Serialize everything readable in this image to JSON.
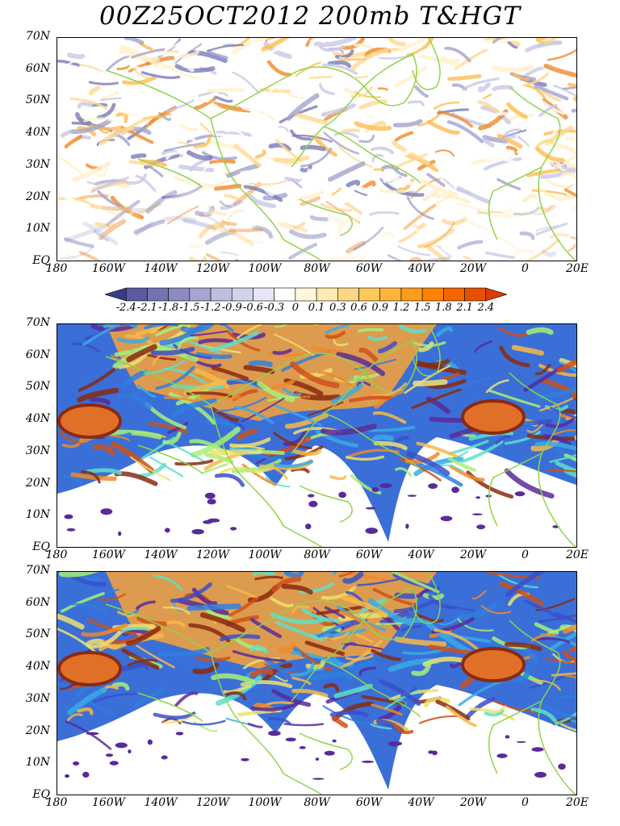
{
  "title": "00Z25OCT2012 200mb T&HGT",
  "lat_labels": [
    "70N",
    "60N",
    "50N",
    "40N",
    "30N",
    "20N",
    "10N",
    "EQ"
  ],
  "lon_labels": [
    "180",
    "160W",
    "140W",
    "120W",
    "100W",
    "80W",
    "60W",
    "40W",
    "20W",
    "0",
    "20E"
  ],
  "colorbar": {
    "labels": [
      "-2.4",
      "-2.1",
      "-1.8",
      "-1.5",
      "-1.2",
      "-0.9",
      "-0.6",
      "-0.3",
      "0",
      "0.1",
      "0.3",
      "0.6",
      "0.9",
      "1.2",
      "1.5",
      "1.8",
      "2.1",
      "2.4"
    ],
    "colors": [
      "#3c3c8c",
      "#5a5aa0",
      "#7373b4",
      "#8c8cc3",
      "#a5a5d2",
      "#bebee1",
      "#d2d2eb",
      "#e6e6f5",
      "#ffffff",
      "#fff8dc",
      "#ffebaf",
      "#ffd782",
      "#ffc85a",
      "#ffb43c",
      "#ff9b1e",
      "#ff8200",
      "#f56400",
      "#e65000",
      "#dc3c00"
    ]
  },
  "panels": [
    {
      "name": "temperature-anomaly-panel",
      "palette": "diverging"
    },
    {
      "name": "wind-speed-panel-a",
      "palette": "jet"
    },
    {
      "name": "wind-speed-panel-b",
      "palette": "jet"
    }
  ],
  "coast_color": "#8fd44a"
}
